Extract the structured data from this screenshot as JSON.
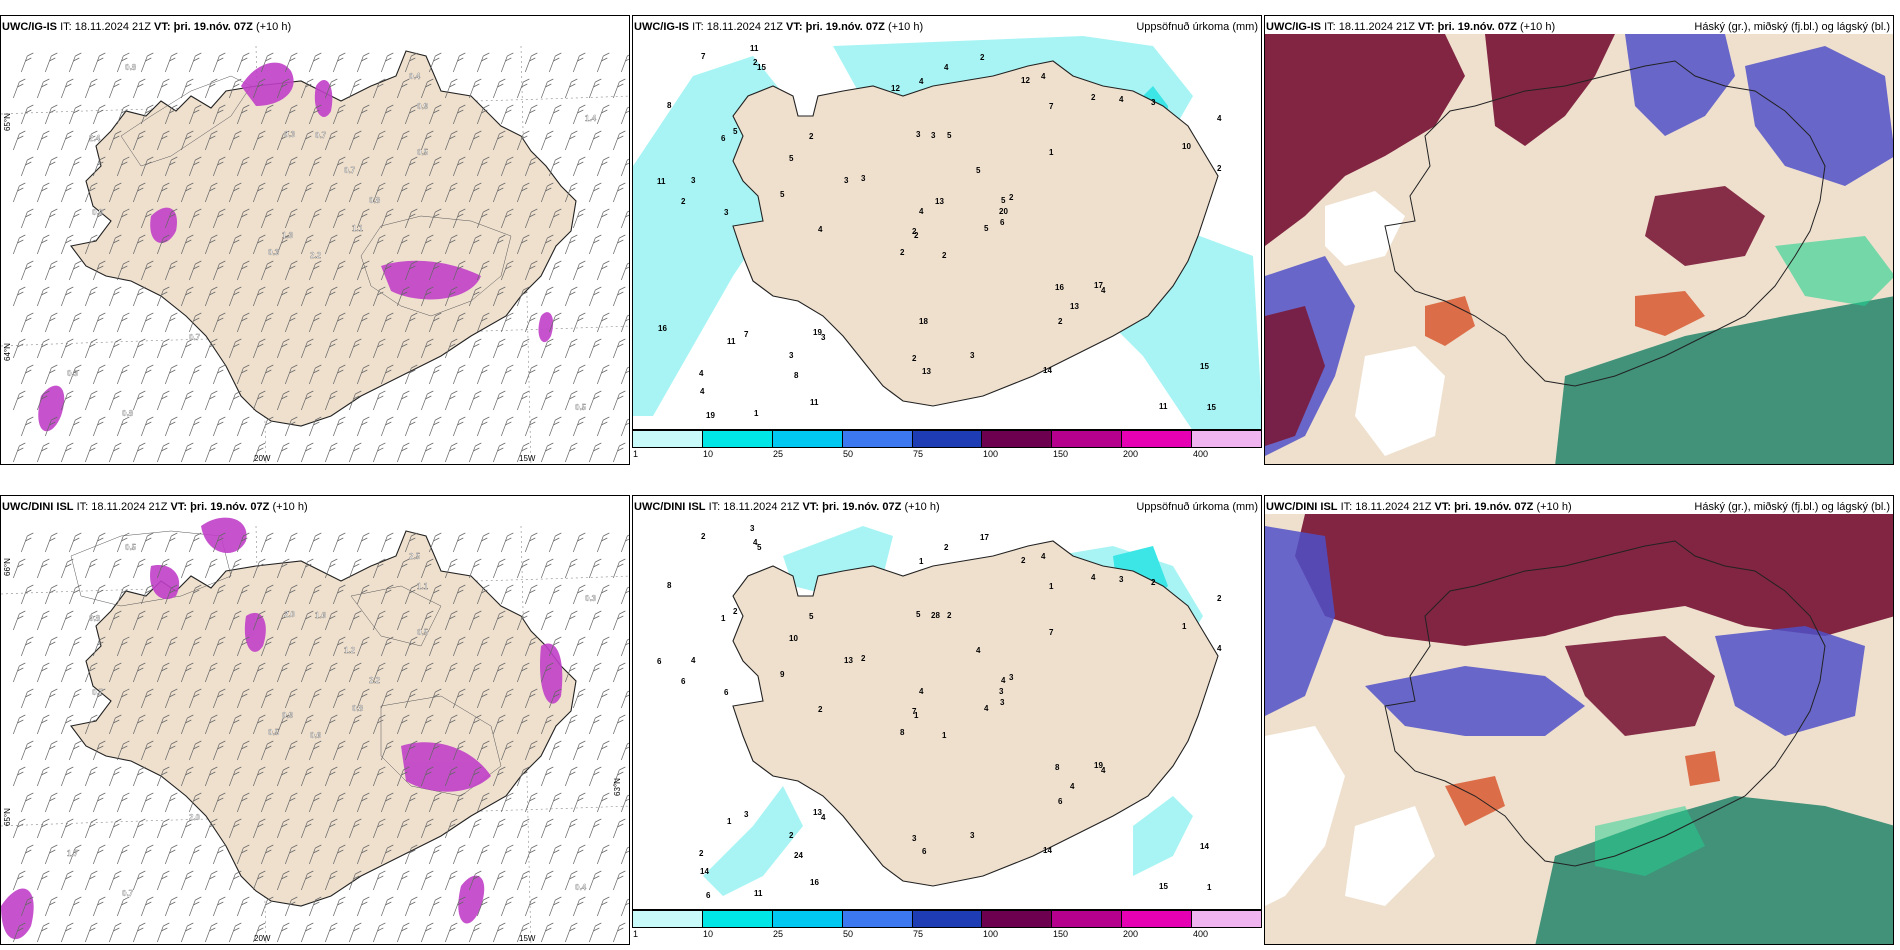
{
  "top": {
    "left_title": {
      "model": "UWC/IG-IS",
      "it": "IT: 18.11.2024 21Z",
      "vt_label": "VT:",
      "vt": "þri. 19.nóv. 07Z",
      "lead": "(+10 h)"
    },
    "mid_title": {
      "model": "UWC/IG-IS",
      "it": "IT: 18.11.2024 21Z",
      "vt_label": "VT:",
      "vt": "þri. 19.nóv. 07Z",
      "lead": "(+10 h)",
      "right": "Uppsöfnuð úrkoma (mm)"
    },
    "right_title": {
      "model": "UWC/IG-IS",
      "it": "IT: 18.11.2024 21Z",
      "vt_label": "VT:",
      "vt": "þri. 19.nóv. 07Z",
      "lead": "(+10 h)",
      "right": "Háský (gr.), miðský (fj.bl.) og lágský (bl.)"
    },
    "precip_numbers": [
      "2",
      "6",
      "2",
      "4",
      "5",
      "3",
      "4",
      "5",
      "7",
      "5",
      "15",
      "15",
      "3",
      "4",
      "2",
      "1",
      "1",
      "3",
      "5",
      "7",
      "3",
      "4",
      "8",
      "3",
      "2",
      "4",
      "5",
      "4",
      "2",
      "16",
      "2",
      "2",
      "2",
      "4",
      "2",
      "2",
      "19",
      "11",
      "15",
      "17",
      "2",
      "3",
      "5",
      "2",
      "11",
      "11",
      "20",
      "19",
      "13",
      "6",
      "11",
      "10",
      "8",
      "13",
      "14",
      "3",
      "2",
      "7",
      "3",
      "3",
      "4",
      "4",
      "3",
      "5",
      "4",
      "11",
      "12",
      "12",
      "13",
      "16",
      "18"
    ],
    "left_numbers": [
      "2.2",
      "2.4",
      "1.3",
      "0.3",
      "0.8",
      "0.7",
      "0.4",
      "0.7",
      "0.9",
      "1.1",
      "0.8",
      "0.5",
      "0.9",
      "1.4",
      "0.3",
      "0.5",
      "0.8",
      "0.3",
      "0.7"
    ]
  },
  "bottom": {
    "left_title": {
      "model": "UWC/DINI ISL",
      "it": "IT: 18.11.2024 21Z",
      "vt_label": "VT:",
      "vt": "þri. 19.nóv. 07Z",
      "lead": "(+10 h)"
    },
    "mid_title": {
      "model": "UWC/DINI ISL",
      "it": "IT: 18.11.2024 21Z",
      "vt_label": "VT:",
      "vt": "þri. 19.nóv. 07Z",
      "lead": "(+10 h)",
      "right": "Uppsöfnuð úrkoma (mm)"
    },
    "right_title": {
      "model": "UWC/DINI ISL",
      "it": "IT: 18.11.2024 21Z",
      "vt_label": "VT:",
      "vt": "þri. 19.nóv. 07Z",
      "lead": "(+10 h)",
      "right": "Háský (gr.), miðský (fj.bl.) og lágský (bl.)"
    },
    "precip_numbers": [
      "1",
      "1",
      "1",
      "2",
      "4",
      "4",
      "4",
      "2",
      "1",
      "4",
      "5",
      "1",
      "6",
      "2",
      "8",
      "7",
      "11",
      "5",
      "4",
      "3",
      "2",
      "14",
      "24",
      "28",
      "3",
      "4",
      "2",
      "1",
      "6",
      "8",
      "4",
      "7",
      "3",
      "4",
      "5",
      "4",
      "13",
      "15",
      "14",
      "19",
      "17",
      "13",
      "9",
      "6",
      "16",
      "6",
      "3",
      "6",
      "6",
      "3",
      "1",
      "1",
      "8",
      "4",
      "14",
      "2",
      "4",
      "2",
      "3",
      "2",
      "2",
      "2",
      "4",
      "10",
      "3",
      "3",
      "2"
    ],
    "left_numbers": [
      "0.6",
      "0.8",
      "0.9",
      "1.7",
      "2.2",
      "2.0",
      "2.5",
      "1.6",
      "1.1",
      "0.8",
      "0.5",
      "0.4",
      "0.7",
      "0.3",
      "0.5",
      "0.5",
      "0.7",
      "2.0",
      "1.2"
    ]
  },
  "axis_labels": {
    "lat65": "65°N",
    "lat64": "64°N",
    "lat66": "66°N",
    "lat63": "63°N",
    "lon20": "20W",
    "lon15": "15W"
  },
  "colorbar": {
    "ticks": [
      "1",
      "10",
      "25",
      "50",
      "75",
      "100",
      "150",
      "200",
      "400"
    ],
    "colors": [
      "#c8fafa",
      "#00e6e6",
      "#00c8f0",
      "#3c78f0",
      "#1e3cb4",
      "#6e0050",
      "#b4008c",
      "#e600b4",
      "#f0b4f0"
    ]
  },
  "colors": {
    "land": "#efe0ce",
    "coast": "#222222",
    "precip_light": "#a8f4f4",
    "precip_mid": "#3ce6e6",
    "ice_purple": "#c040c8",
    "high_cloud_dark": "#7a1a3a",
    "mid_cloud_blue": "#5050c8",
    "low_cloud_green": "#2e8a70",
    "orange": "#d8603a"
  }
}
